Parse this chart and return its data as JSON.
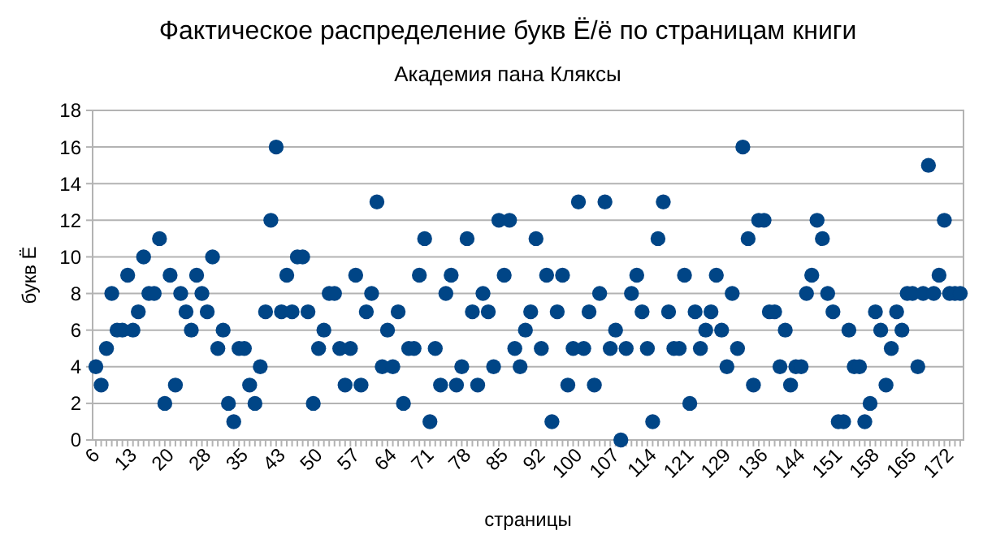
{
  "chart_data": {
    "type": "scatter",
    "title": "Фактическое распределение букв Ё/ё по страницам книги",
    "subtitle": "Академия пана Кляксы",
    "xlabel": "страницы",
    "ylabel": "букв Ё",
    "categories": [
      "6",
      null,
      null,
      null,
      null,
      null,
      null,
      "13",
      null,
      null,
      null,
      null,
      null,
      null,
      "20",
      null,
      null,
      null,
      null,
      null,
      null,
      "28",
      null,
      null,
      null,
      null,
      null,
      null,
      "35",
      null,
      null,
      null,
      null,
      null,
      null,
      "43",
      null,
      null,
      null,
      null,
      null,
      null,
      "50",
      null,
      null,
      null,
      null,
      null,
      null,
      "57",
      null,
      null,
      null,
      null,
      null,
      null,
      "64",
      null,
      null,
      null,
      null,
      null,
      null,
      "71",
      null,
      null,
      null,
      null,
      null,
      null,
      "78",
      null,
      null,
      null,
      null,
      null,
      null,
      "85",
      null,
      null,
      null,
      null,
      null,
      null,
      "92",
      null,
      null,
      null,
      null,
      null,
      null,
      "100",
      null,
      null,
      null,
      null,
      null,
      null,
      "107",
      null,
      null,
      null,
      null,
      null,
      null,
      "114",
      null,
      null,
      null,
      null,
      null,
      null,
      "121",
      null,
      null,
      null,
      null,
      null,
      null,
      "129",
      null,
      null,
      null,
      null,
      null,
      null,
      "136",
      null,
      null,
      null,
      null,
      null,
      null,
      "144",
      null,
      null,
      null,
      null,
      null,
      null,
      "151",
      null,
      null,
      null,
      null,
      null,
      null,
      "158",
      null,
      null,
      null,
      null,
      null,
      null,
      "165",
      null,
      null,
      null,
      null,
      null,
      null,
      "172",
      null,
      null
    ],
    "series": [
      {
        "color": "#004586",
        "values": [
          4,
          3,
          5,
          8,
          6,
          6,
          9,
          6,
          7,
          10,
          8,
          8,
          11,
          2,
          9,
          3,
          8,
          7,
          6,
          9,
          8,
          7,
          10,
          5,
          6,
          2,
          1,
          5,
          5,
          3,
          2,
          4,
          7,
          12,
          16,
          7,
          9,
          7,
          10,
          10,
          7,
          2,
          5,
          6,
          8,
          8,
          5,
          3,
          5,
          9,
          3,
          7,
          8,
          13,
          4,
          6,
          4,
          7,
          2,
          5,
          5,
          9,
          11,
          1,
          5,
          3,
          8,
          9,
          3,
          4,
          11,
          7,
          3,
          8,
          7,
          4,
          12,
          9,
          12,
          5,
          4,
          6,
          7,
          11,
          5,
          9,
          1,
          7,
          9,
          3,
          5,
          13,
          5,
          7,
          3,
          8,
          13,
          5,
          6,
          0,
          5,
          8,
          9,
          7,
          5,
          1,
          11,
          13,
          7,
          5,
          5,
          9,
          2,
          7,
          5,
          6,
          7,
          9,
          6,
          4,
          8,
          5,
          16,
          11,
          3,
          12,
          12,
          7,
          7,
          4,
          6,
          3,
          4,
          4,
          8,
          9,
          12,
          11,
          8,
          7,
          1,
          1,
          6,
          4,
          4,
          1,
          2,
          7,
          6,
          3,
          5,
          7,
          6,
          8,
          8,
          4,
          8,
          15,
          8,
          9,
          12,
          8,
          8,
          8
        ]
      }
    ],
    "ylim": [
      0,
      18
    ],
    "yticks": [
      0,
      2,
      4,
      6,
      8,
      10,
      12,
      14,
      16,
      18
    ],
    "grid": "y",
    "marker": "circle"
  }
}
